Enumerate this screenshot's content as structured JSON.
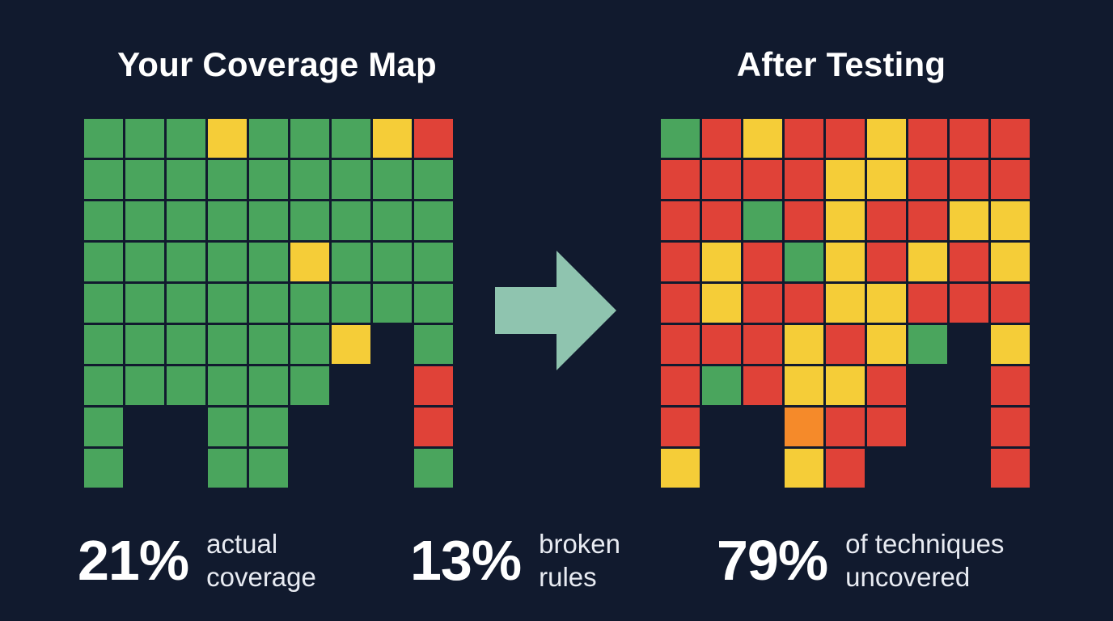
{
  "left_panel": {
    "title": "Your Coverage Map",
    "grid": [
      [
        "G",
        "G",
        "G",
        "Y",
        "G",
        "G",
        "G",
        "Y",
        "R"
      ],
      [
        "G",
        "G",
        "G",
        "G",
        "G",
        "G",
        "G",
        "G",
        "G"
      ],
      [
        "G",
        "G",
        "G",
        "G",
        "G",
        "G",
        "G",
        "G",
        "G"
      ],
      [
        "G",
        "G",
        "G",
        "G",
        "G",
        "Y",
        "G",
        "G",
        "G"
      ],
      [
        "G",
        "G",
        "G",
        "G",
        "G",
        "G",
        "G",
        "G",
        "G"
      ],
      [
        "G",
        "G",
        "G",
        "G",
        "G",
        "G",
        "Y",
        "-",
        "G"
      ],
      [
        "G",
        "G",
        "G",
        "G",
        "G",
        "G",
        "-",
        "-",
        "R"
      ],
      [
        "G",
        "-",
        "-",
        "G",
        "G",
        "-",
        "-",
        "-",
        "R"
      ],
      [
        "G",
        "-",
        "-",
        "G",
        "G",
        "-",
        "-",
        "-",
        "G"
      ]
    ]
  },
  "right_panel": {
    "title": "After Testing",
    "grid": [
      [
        "G",
        "R",
        "Y",
        "R",
        "R",
        "Y",
        "R",
        "R",
        "R"
      ],
      [
        "R",
        "R",
        "R",
        "R",
        "Y",
        "Y",
        "R",
        "R",
        "R"
      ],
      [
        "R",
        "R",
        "G",
        "R",
        "Y",
        "R",
        "R",
        "Y",
        "Y"
      ],
      [
        "R",
        "Y",
        "R",
        "G",
        "Y",
        "R",
        "Y",
        "R",
        "Y"
      ],
      [
        "R",
        "Y",
        "R",
        "R",
        "Y",
        "Y",
        "R",
        "R",
        "R"
      ],
      [
        "R",
        "R",
        "R",
        "Y",
        "R",
        "Y",
        "G",
        "-",
        "Y"
      ],
      [
        "R",
        "G",
        "R",
        "Y",
        "Y",
        "R",
        "-",
        "-",
        "R"
      ],
      [
        "R",
        "-",
        "-",
        "O",
        "R",
        "R",
        "-",
        "-",
        "R"
      ],
      [
        "Y",
        "-",
        "-",
        "Y",
        "R",
        "-",
        "-",
        "-",
        "R"
      ]
    ]
  },
  "legend_colors": {
    "G": "#4aa55d",
    "Y": "#f5cd38",
    "R": "#e04238",
    "O": "#f58a2a"
  },
  "arrow": {
    "icon": "arrow-right-icon",
    "color": "#8fc4af"
  },
  "stats": [
    {
      "value": "21%",
      "label_line1": "actual",
      "label_line2": "coverage"
    },
    {
      "value": "13%",
      "label_line1": "broken",
      "label_line2": "rules"
    },
    {
      "value": "79%",
      "label_line1": "of techniques",
      "label_line2": "uncovered"
    }
  ]
}
